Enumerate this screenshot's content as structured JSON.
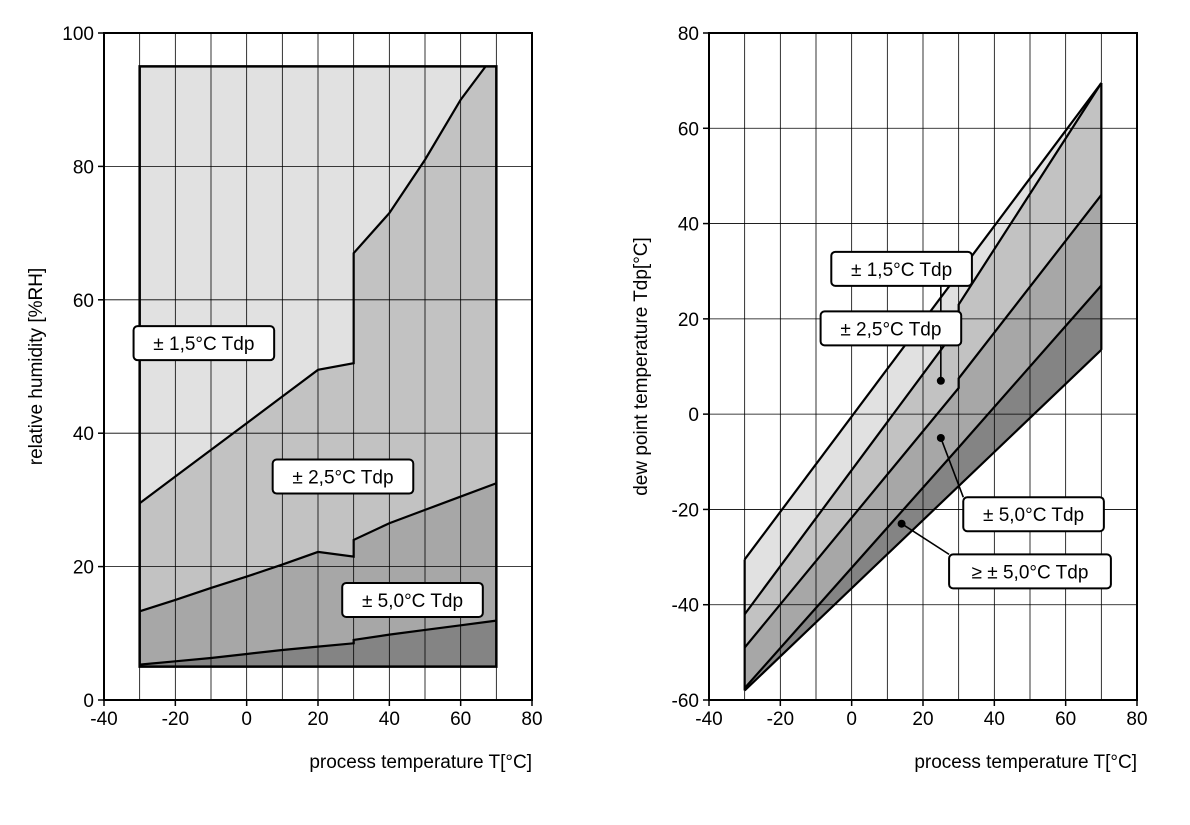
{
  "chart_data": [
    {
      "type": "area",
      "xlabel": "process temperature T[°C]",
      "ylabel": "relative humidity [%RH]",
      "xlim": [
        -40,
        80
      ],
      "ylim": [
        0,
        100
      ],
      "xticks": [
        -40,
        -20,
        0,
        20,
        40,
        60,
        80
      ],
      "yticks": [
        0,
        20,
        40,
        60,
        80,
        100
      ],
      "grid": true,
      "domain": {
        "x": [
          -30,
          70
        ],
        "y": [
          5,
          95
        ]
      },
      "boundaries": [
        {
          "name": "± 1,5°C Tdp / ± 2,5°C Tdp",
          "points": [
            [
              -30,
              29.5
            ],
            [
              -20,
              33.5
            ],
            [
              -10,
              37.5
            ],
            [
              0,
              41.5
            ],
            [
              10,
              45.5
            ],
            [
              20,
              49.5
            ],
            [
              30,
              50.5
            ],
            [
              30,
              67
            ],
            [
              40,
              73
            ],
            [
              50,
              81
            ],
            [
              60,
              90
            ],
            [
              67,
              95
            ]
          ]
        },
        {
          "name": "± 2,5°C Tdp / ± 5,0°C Tdp",
          "points": [
            [
              -30,
              13.3
            ],
            [
              -20,
              15
            ],
            [
              -10,
              16.8
            ],
            [
              0,
              18.5
            ],
            [
              10,
              20.3
            ],
            [
              20,
              22.2
            ],
            [
              30,
              21.5
            ],
            [
              30,
              24
            ],
            [
              40,
              26.5
            ],
            [
              50,
              28.5
            ],
            [
              60,
              30.5
            ],
            [
              70,
              32.5
            ]
          ]
        },
        {
          "name": "± 5,0°C Tdp / ≥ ± 5,0°C Tdp",
          "points": [
            [
              -30,
              5.3
            ],
            [
              -20,
              5.8
            ],
            [
              -10,
              6.3
            ],
            [
              0,
              6.9
            ],
            [
              10,
              7.5
            ],
            [
              20,
              8.0
            ],
            [
              30,
              8.5
            ],
            [
              30,
              9
            ],
            [
              40,
              9.8
            ],
            [
              50,
              10.5
            ],
            [
              60,
              11.2
            ],
            [
              70,
              11.9
            ]
          ]
        }
      ],
      "labels": [
        {
          "text": "± 1,5°C Tdp",
          "x": -12,
          "y": 53.5
        },
        {
          "text": "± 2,5°C Tdp",
          "x": 27,
          "y": 33.5
        },
        {
          "text": "± 5,0°C Tdp",
          "x": 46.5,
          "y": 15
        }
      ],
      "colors": {
        "zone1": "#e1e1e1",
        "zone2": "#c2c2c2",
        "zone3": "#a7a7a7",
        "zone4": "#848484"
      }
    },
    {
      "type": "area",
      "xlabel": "process temperature T[°C]",
      "ylabel": "dew point temperature Tdp[°C]",
      "xlim": [
        -40,
        80
      ],
      "ylim": [
        -60,
        80
      ],
      "xticks": [
        -40,
        -20,
        0,
        20,
        40,
        60,
        80
      ],
      "yticks": [
        -60,
        -40,
        -20,
        0,
        20,
        40,
        60,
        80
      ],
      "grid": true,
      "lines": [
        {
          "name": "upper",
          "points": [
            [
              -30,
              -30.5
            ],
            [
              70,
              69.5
            ]
          ]
        },
        {
          "name": "1,5/2,5",
          "points": [
            [
              -30,
              -42
            ],
            [
              30,
              18.5
            ],
            [
              30,
              23
            ],
            [
              70,
              69.5
            ]
          ]
        },
        {
          "name": "2,5/5,0",
          "points": [
            [
              -30,
              -49
            ],
            [
              30,
              5.5
            ],
            [
              30,
              7.5
            ],
            [
              70,
              46
            ]
          ]
        },
        {
          "name": "5,0/≥5,0",
          "points": [
            [
              -30,
              -57.5
            ],
            [
              30,
              -7
            ],
            [
              70,
              27
            ]
          ]
        },
        {
          "name": "lower",
          "points": [
            [
              -30,
              -58
            ],
            [
              70,
              13.5
            ]
          ]
        }
      ],
      "labels": [
        {
          "text": "± 1,5°C Tdp",
          "x": 14,
          "y": 30.5,
          "point": [
            25,
            17
          ]
        },
        {
          "text": "± 2,5°C Tdp",
          "x": 11,
          "y": 18,
          "point": [
            25,
            7
          ]
        },
        {
          "text": "± 5,0°C Tdp",
          "x": 51,
          "y": -21,
          "point": [
            25,
            -5
          ]
        },
        {
          "text": "≥ ± 5,0°C Tdp",
          "x": 50,
          "y": -33,
          "point": [
            14,
            -23
          ]
        }
      ],
      "colors": {
        "zone1": "#e1e1e1",
        "zone2": "#c2c2c2",
        "zone3": "#a7a7a7",
        "zone4": "#848484"
      }
    }
  ]
}
